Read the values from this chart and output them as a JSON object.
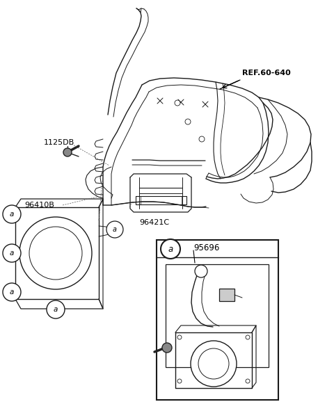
{
  "bg_color": "#ffffff",
  "line_color": "#1a1a1a",
  "text_color": "#000000",
  "fig_width": 4.8,
  "fig_height": 5.91,
  "dpi": 100,
  "ref_label": "REF.60-640",
  "label_1125DB": "1125DB",
  "label_96410B": "96410B",
  "label_96421C": "96421C",
  "label_95696": "95696",
  "label_a": "a"
}
